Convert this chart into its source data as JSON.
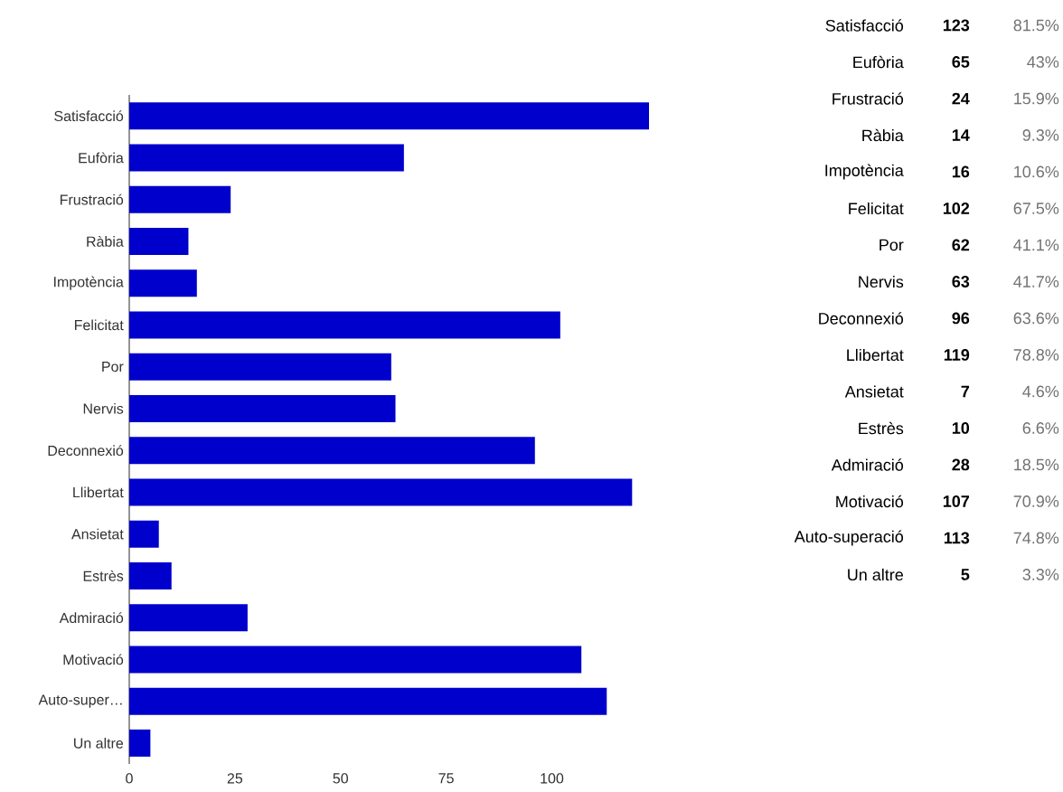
{
  "chart_data": [
    {
      "type": "bar",
      "orientation": "horizontal",
      "categories": [
        "Satisfacció",
        "Eufòria",
        "Frustració",
        "Ràbia",
        "Impotència",
        "Felicitat",
        "Por",
        "Nervis",
        "Deconnexió",
        "Llibertat",
        "Ansietat",
        "Estrès",
        "Admiració",
        "Motivació",
        "Auto-super…",
        "Un altre"
      ],
      "values": [
        123,
        65,
        24,
        14,
        16,
        102,
        62,
        63,
        96,
        119,
        7,
        10,
        28,
        107,
        113,
        5
      ],
      "color": "#0000cc",
      "xlim": [
        0,
        123
      ],
      "xticks": [
        0,
        25,
        50,
        75,
        100
      ]
    },
    {
      "type": "other",
      "categories": [
        "Satisfacció",
        "Eufòria",
        "Frustració",
        "Ràbia",
        "Impotència",
        "Felicitat",
        "Por",
        "Nervis",
        "Deconnexió",
        "Llibertat",
        "Ansietat",
        "Estrès",
        "Admiració",
        "Motivació",
        "Auto-superació",
        "Un altre"
      ],
      "series": [
        {
          "color": "#000000",
          "values": [
            123,
            65,
            24,
            14,
            16,
            102,
            62,
            63,
            96,
            119,
            7,
            10,
            28,
            107,
            113,
            5
          ]
        },
        {
          "color": "#737373",
          "values": [
            81.5,
            43,
            15.9,
            9.3,
            10.6,
            67.5,
            41.1,
            41.7,
            63.6,
            78.8,
            4.6,
            6.6,
            18.5,
            70.9,
            74.8,
            3.3
          ],
          "value_labels": [
            "81.5%",
            "43%",
            "15.9%",
            "9.3%",
            "10.6%",
            "67.5%",
            "41.1%",
            "41.7%",
            "63.6%",
            "78.8%",
            "4.6%",
            "6.6%",
            "18.5%",
            "70.9%",
            "74.8%",
            "3.3%"
          ]
        }
      ],
      "data_labels": true
    }
  ]
}
